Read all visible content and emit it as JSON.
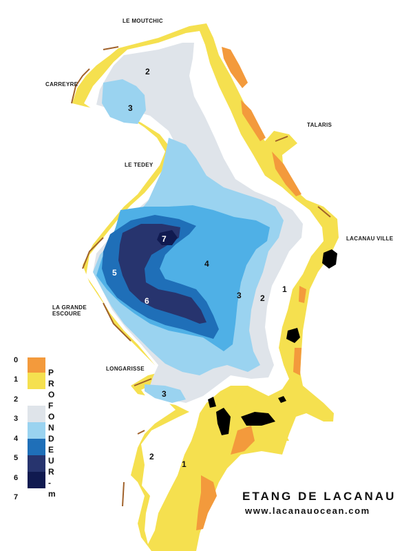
{
  "title": "ETANG DE LACANAU",
  "website": "www.lacanauocean.com",
  "places": {
    "le_moutchic": "LE MOUTCHIC",
    "carreyre": "CARREYRE",
    "talaris": "TALARIS",
    "le_tedey": "LE TEDEY",
    "lacanau_ville": "LACANAU VILLE",
    "la_grande": "LA GRANDE",
    "escoure": "ESCOURE",
    "longarisse": "LONGARISSE"
  },
  "depth_labels": [
    "2",
    "3",
    "7",
    "4",
    "5",
    "6",
    "3",
    "2",
    "1",
    "3",
    "2",
    "1"
  ],
  "legend": {
    "title": "PROFONDEUR - m",
    "ticks": [
      "0",
      "1",
      "2",
      "3",
      "4",
      "5",
      "6",
      "7"
    ],
    "colors": [
      "#f39a3c",
      "#f5e04f",
      "#ffffff",
      "#dfe4ea",
      "#9ad3f0",
      "#1f6fb8",
      "#27346e",
      "#101a50"
    ]
  },
  "colors": {
    "beach_orange": "#f39a3c",
    "shallow_yellow": "#f5e04f",
    "depth_2": "#ffffff",
    "depth_3": "#dfe4ea",
    "depth_4": "#9ad3f0",
    "depth_5": "#4fb0e6",
    "depth_6": "#1f6fb8",
    "depth_7": "#27346e",
    "depth_max": "#101a50",
    "shore_brown": "#a0612a",
    "islands": "#000000"
  }
}
